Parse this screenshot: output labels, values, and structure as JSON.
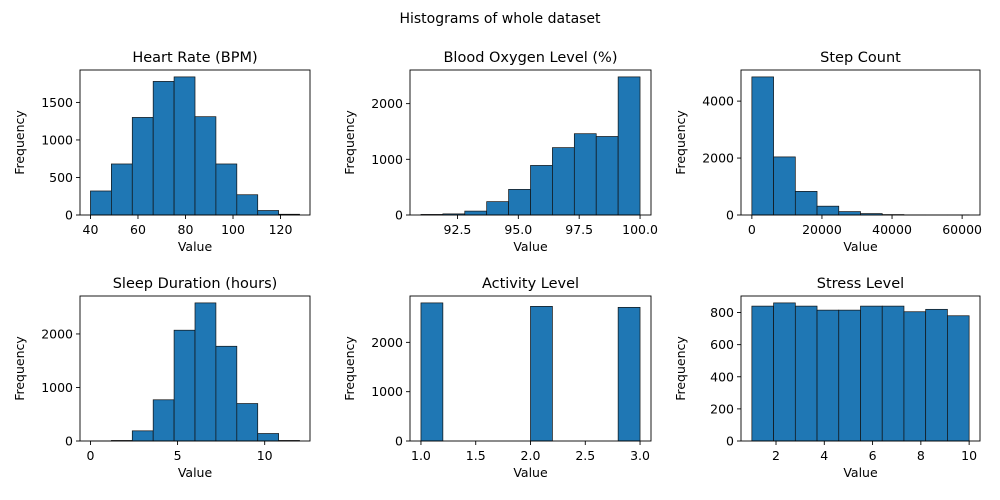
{
  "figure": {
    "title": "Histograms of whole dataset"
  },
  "chart_data": [
    {
      "type": "bar",
      "title": "Heart Rate (BPM)",
      "xlabel": "Value",
      "ylabel": "Frequency",
      "bin_edges": [
        40,
        48.8,
        57.6,
        66.4,
        75.2,
        84,
        92.8,
        101.6,
        110.4,
        119.2,
        128
      ],
      "values": [
        320,
        680,
        1300,
        1780,
        1840,
        1310,
        680,
        270,
        60,
        10
      ],
      "xlim": [
        35.6,
        132.4
      ],
      "ylim": [
        0,
        1932
      ],
      "xticks": [
        40,
        60,
        80,
        100,
        120
      ],
      "xtick_labels": [
        "40",
        "60",
        "80",
        "100",
        "120"
      ],
      "yticks": [
        0,
        500,
        1000,
        1500
      ],
      "ytick_labels": [
        "0",
        "500",
        "1000",
        "1500"
      ]
    },
    {
      "type": "bar",
      "title": "Blood Oxygen Level (%)",
      "xlabel": "Value",
      "ylabel": "Frequency",
      "bin_edges": [
        91,
        91.9,
        92.8,
        93.7,
        94.6,
        95.5,
        96.4,
        97.3,
        98.2,
        99.1,
        100
      ],
      "values": [
        10,
        20,
        70,
        240,
        460,
        890,
        1210,
        1460,
        1410,
        2480
      ],
      "xlim": [
        90.55,
        100.45
      ],
      "ylim": [
        0,
        2604
      ],
      "xticks": [
        92.5,
        95.0,
        97.5,
        100.0
      ],
      "xtick_labels": [
        "92.5",
        "95.0",
        "97.5",
        "100.0"
      ],
      "yticks": [
        0,
        1000,
        2000
      ],
      "ytick_labels": [
        "0",
        "1000",
        "2000"
      ]
    },
    {
      "type": "bar",
      "title": "Step Count",
      "xlabel": "Value",
      "ylabel": "Frequency",
      "bin_edges": [
        0,
        6200,
        12400,
        18600,
        24800,
        31000,
        37200,
        43400,
        49600,
        55800,
        62000
      ],
      "values": [
        4850,
        2040,
        830,
        310,
        120,
        50,
        15,
        5,
        3,
        2
      ],
      "xlim": [
        -3100,
        65100
      ],
      "ylim": [
        0,
        5093
      ],
      "xticks": [
        0,
        20000,
        40000,
        60000
      ],
      "xtick_labels": [
        "0",
        "20000",
        "40000",
        "60000"
      ],
      "yticks": [
        0,
        2000,
        4000
      ],
      "ytick_labels": [
        "0",
        "2000",
        "4000"
      ]
    },
    {
      "type": "bar",
      "title": "Sleep Duration (hours)",
      "xlabel": "Value",
      "ylabel": "Frequency",
      "bin_edges": [
        0,
        1.2,
        2.4,
        3.6,
        4.8,
        6.0,
        7.2,
        8.4,
        9.6,
        10.8,
        12
      ],
      "values": [
        2,
        10,
        190,
        770,
        2070,
        2580,
        1770,
        700,
        140,
        10
      ],
      "xlim": [
        -0.6,
        12.6
      ],
      "ylim": [
        0,
        2709
      ],
      "xticks": [
        0,
        5,
        10
      ],
      "xtick_labels": [
        "0",
        "5",
        "10"
      ],
      "yticks": [
        0,
        1000,
        2000
      ],
      "ytick_labels": [
        "0",
        "1000",
        "2000"
      ]
    },
    {
      "type": "bar",
      "title": "Activity Level",
      "xlabel": "Value",
      "ylabel": "Frequency",
      "bin_edges": [
        1.0,
        1.2,
        1.4,
        1.6,
        1.8,
        2.0,
        2.2,
        2.4,
        2.6,
        2.8,
        3.0
      ],
      "values": [
        2800,
        0,
        0,
        0,
        0,
        2730,
        0,
        0,
        0,
        2710
      ],
      "xlim": [
        0.9,
        3.1
      ],
      "ylim": [
        0,
        2940
      ],
      "xticks": [
        1.0,
        1.5,
        2.0,
        2.5,
        3.0
      ],
      "xtick_labels": [
        "1.0",
        "1.5",
        "2.0",
        "2.5",
        "3.0"
      ],
      "yticks": [
        0,
        1000,
        2000
      ],
      "ytick_labels": [
        "0",
        "1000",
        "2000"
      ]
    },
    {
      "type": "bar",
      "title": "Stress Level",
      "xlabel": "Value",
      "ylabel": "Frequency",
      "bin_edges": [
        1,
        1.9,
        2.8,
        3.7,
        4.6,
        5.5,
        6.4,
        7.3,
        8.2,
        9.1,
        10
      ],
      "values": [
        840,
        860,
        840,
        815,
        815,
        840,
        840,
        805,
        820,
        780
      ],
      "xlim": [
        0.55,
        10.45
      ],
      "ylim": [
        0,
        903
      ],
      "xticks": [
        2,
        4,
        6,
        8,
        10
      ],
      "xtick_labels": [
        "2",
        "4",
        "6",
        "8",
        "10"
      ],
      "yticks": [
        0,
        200,
        400,
        600,
        800
      ],
      "ytick_labels": [
        "0",
        "200",
        "400",
        "600",
        "800"
      ]
    }
  ]
}
